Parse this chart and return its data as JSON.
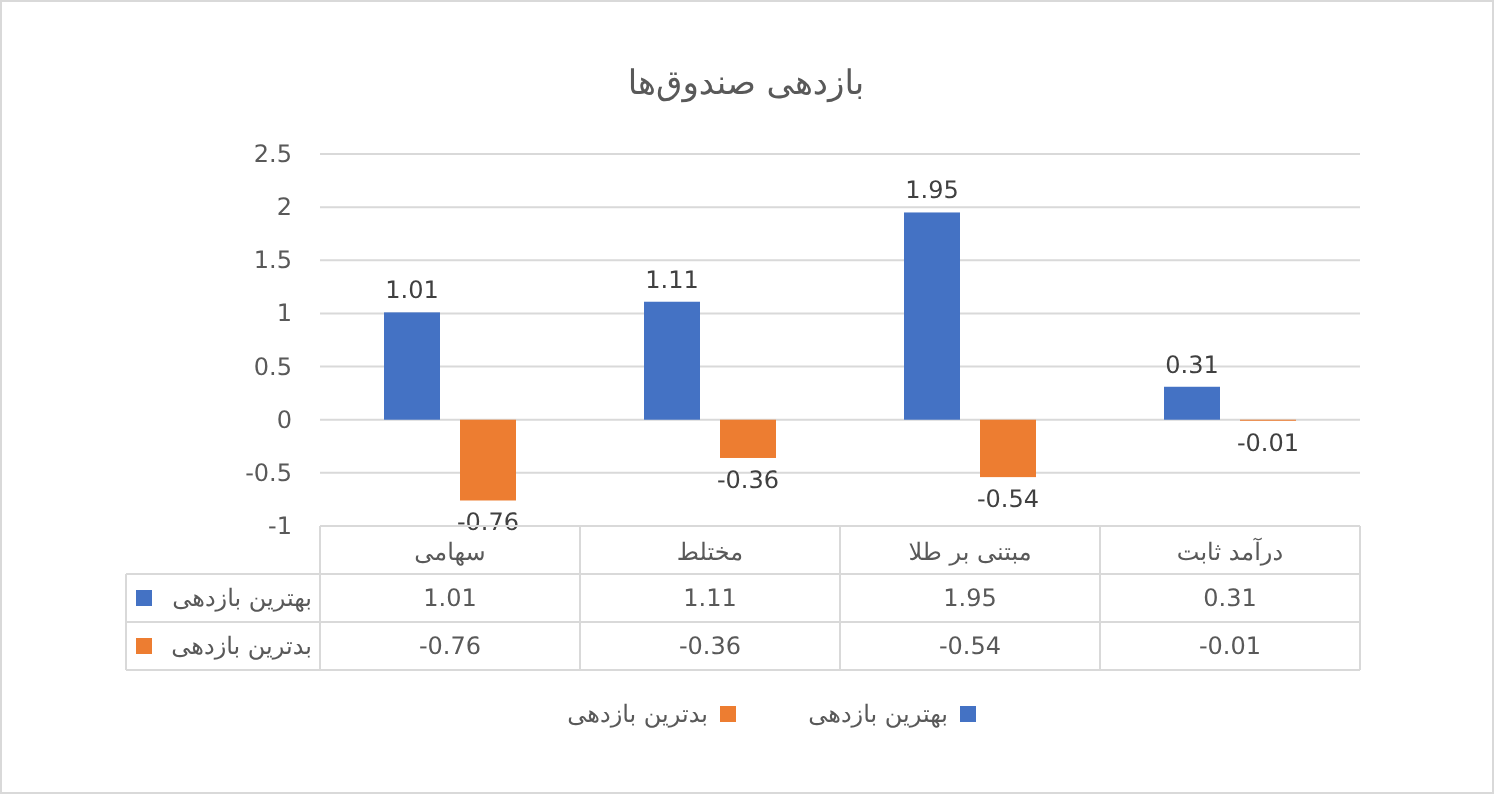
{
  "chart_data": {
    "type": "bar",
    "title": "بازدهی صندوق‌ها",
    "categories": [
      "سهامی",
      "مختلط",
      "مبتنی بر طلا",
      "درآمد ثابت"
    ],
    "series": [
      {
        "name": "بهترین بازدهی",
        "color": "#4472c4",
        "values": [
          1.01,
          1.11,
          1.95,
          0.31
        ],
        "value_labels": [
          "1.01",
          "1.11",
          "1.95",
          "0.31"
        ]
      },
      {
        "name": "بدترین بازدهی",
        "color": "#ed7d31",
        "values": [
          -0.76,
          -0.36,
          -0.54,
          -0.01
        ],
        "value_labels": [
          "-0.76",
          "-0.36",
          "-0.54",
          "-0.01"
        ]
      }
    ],
    "ylim": [
      -1,
      2.5
    ],
    "yticks": [
      -1,
      -0.5,
      0,
      0.5,
      1,
      1.5,
      2,
      2.5
    ],
    "grid": "y",
    "legend": "bottom",
    "annotations": [
      "1.01",
      "1.11",
      "1.95",
      "0.31",
      "-0.76",
      "-0.36",
      "-0.54",
      "-0.01"
    ]
  }
}
